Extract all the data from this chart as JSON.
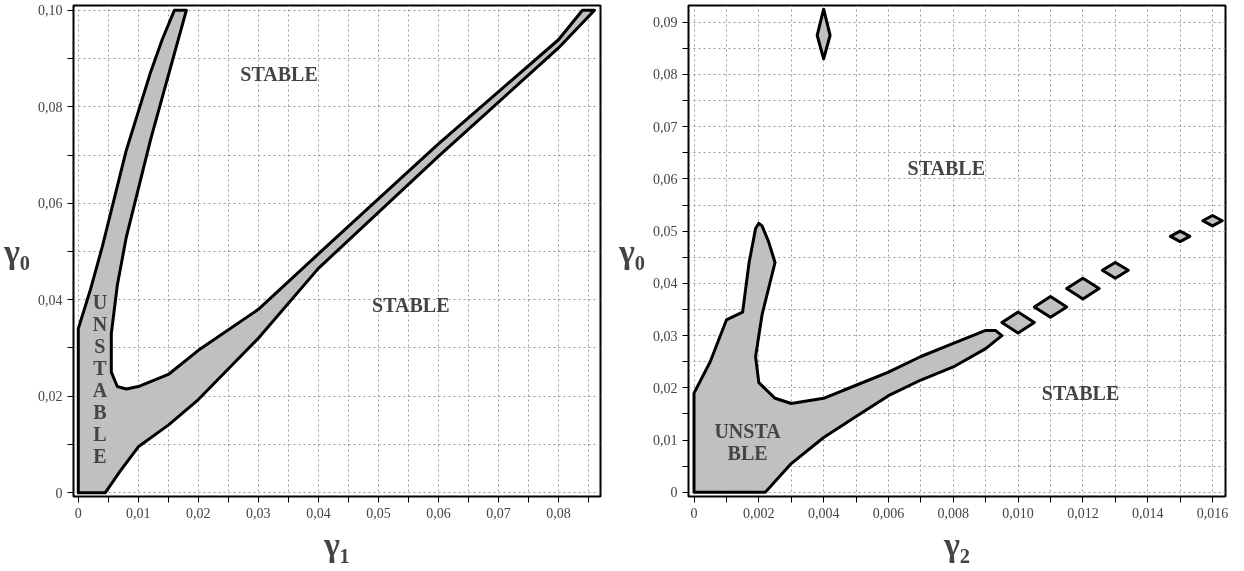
{
  "chart_data": [
    {
      "type": "area",
      "xlabel": "γ₁",
      "ylabel": "γ₀",
      "grid": true,
      "xlim": [
        -0.0008,
        0.087
      ],
      "ylim": [
        -0.0008,
        0.101
      ],
      "xticks": [
        {
          "value": 0,
          "label": "0"
        },
        {
          "value": 0.005,
          "label": null
        },
        {
          "value": 0.01,
          "label": "0,01"
        },
        {
          "value": 0.015,
          "label": null
        },
        {
          "value": 0.02,
          "label": "0,02"
        },
        {
          "value": 0.025,
          "label": null
        },
        {
          "value": 0.03,
          "label": "0,03"
        },
        {
          "value": 0.035,
          "label": null
        },
        {
          "value": 0.04,
          "label": "0,04"
        },
        {
          "value": 0.045,
          "label": null
        },
        {
          "value": 0.05,
          "label": "0,05"
        },
        {
          "value": 0.055,
          "label": null
        },
        {
          "value": 0.06,
          "label": "0,06"
        },
        {
          "value": 0.065,
          "label": null
        },
        {
          "value": 0.07,
          "label": "0,07"
        },
        {
          "value": 0.075,
          "label": null
        },
        {
          "value": 0.08,
          "label": "0,08"
        },
        {
          "value": 0.085,
          "label": null
        }
      ],
      "yticks": [
        {
          "value": 0,
          "label": "0"
        },
        {
          "value": 0.01,
          "label": null
        },
        {
          "value": 0.02,
          "label": "0,02"
        },
        {
          "value": 0.03,
          "label": null
        },
        {
          "value": 0.04,
          "label": "0,04"
        },
        {
          "value": 0.05,
          "label": null
        },
        {
          "value": 0.06,
          "label": "0,06"
        },
        {
          "value": 0.07,
          "label": null
        },
        {
          "value": 0.08,
          "label": "0,08"
        },
        {
          "value": 0.09,
          "label": null
        },
        {
          "value": 0.1,
          "label": "0,10"
        }
      ],
      "series": [
        {
          "color": "#c0c0c0",
          "x": [
            0,
            0,
            0.002,
            0.004,
            0.006,
            0.008,
            0.01,
            0.012,
            0.014,
            0.016,
            0.018,
            0.016,
            0.014,
            0.012,
            0.01,
            0.008,
            0.0065,
            0.0055,
            0.0055,
            0.0065,
            0.008,
            0.01,
            0.015,
            0.02,
            0.03,
            0.04,
            0.06,
            0.08,
            0.084,
            0.086,
            0.08,
            0.06,
            0.04,
            0.03,
            0.02,
            0.015,
            0.01,
            0.007,
            0.0045
          ],
          "values": [
            0,
            0.034,
            0.042,
            0.051,
            0.061,
            0.071,
            0.079,
            0.087,
            0.094,
            0.1,
            0.1,
            0.091,
            0.082,
            0.073,
            0.063,
            0.053,
            0.043,
            0.033,
            0.025,
            0.022,
            0.0215,
            0.022,
            0.0245,
            0.0295,
            0.038,
            0.0495,
            0.0723,
            0.0939,
            0.1,
            0.1,
            0.0922,
            0.0697,
            0.0465,
            0.032,
            0.0193,
            0.014,
            0.0095,
            0.0045,
            0
          ]
        }
      ],
      "annotations": [
        "STABLE",
        "STABLE",
        "U\nN\nS\nT\nA\nB\nL\nE"
      ]
    },
    {
      "type": "area",
      "xlabel": "γ₂",
      "ylabel": "γ₀",
      "grid": true,
      "xlim": [
        -0.00017,
        0.0164
      ],
      "ylim": [
        -0.0008,
        0.0932
      ],
      "xticks": [
        {
          "value": 0,
          "label": "0"
        },
        {
          "value": 0.001,
          "label": null
        },
        {
          "value": 0.002,
          "label": "0,002"
        },
        {
          "value": 0.003,
          "label": null
        },
        {
          "value": 0.004,
          "label": "0,004"
        },
        {
          "value": 0.005,
          "label": null
        },
        {
          "value": 0.006,
          "label": "0,006"
        },
        {
          "value": 0.007,
          "label": null
        },
        {
          "value": 0.008,
          "label": "0,008"
        },
        {
          "value": 0.009,
          "label": null
        },
        {
          "value": 0.01,
          "label": "0,010"
        },
        {
          "value": 0.011,
          "label": null
        },
        {
          "value": 0.012,
          "label": "0,012"
        },
        {
          "value": 0.013,
          "label": null
        },
        {
          "value": 0.014,
          "label": "0,014"
        },
        {
          "value": 0.015,
          "label": null
        },
        {
          "value": 0.016,
          "label": "0,016"
        }
      ],
      "yticks": [
        {
          "value": 0,
          "label": "0"
        },
        {
          "value": 0.005,
          "label": null
        },
        {
          "value": 0.01,
          "label": "0,01"
        },
        {
          "value": 0.015,
          "label": null
        },
        {
          "value": 0.02,
          "label": "0,02"
        },
        {
          "value": 0.025,
          "label": null
        },
        {
          "value": 0.03,
          "label": "0,03"
        },
        {
          "value": 0.035,
          "label": null
        },
        {
          "value": 0.04,
          "label": "0,04"
        },
        {
          "value": 0.045,
          "label": null
        },
        {
          "value": 0.05,
          "label": "0,05"
        },
        {
          "value": 0.055,
          "label": null
        },
        {
          "value": 0.06,
          "label": "0,06"
        },
        {
          "value": 0.065,
          "label": null
        },
        {
          "value": 0.07,
          "label": "0,07"
        },
        {
          "value": 0.075,
          "label": null
        },
        {
          "value": 0.08,
          "label": "0,08"
        },
        {
          "value": 0.085,
          "label": null
        },
        {
          "value": 0.09,
          "label": "0,09"
        }
      ],
      "series": [
        {
          "color": "#c0c0c0",
          "x": [
            0,
            0,
            0.0005,
            0.001,
            0.0015,
            0.0017,
            0.0019,
            0.002,
            0.0021,
            0.0023,
            0.0025,
            0.0021,
            0.0019,
            0.002,
            0.0025,
            0.003,
            0.004,
            0.005,
            0.006,
            0.007,
            0.008,
            0.009,
            0.0093,
            0.0095,
            0.009,
            0.008,
            0.007,
            0.006,
            0.005,
            0.004,
            0.003,
            0.0022
          ],
          "values": [
            0,
            0.019,
            0.025,
            0.033,
            0.0345,
            0.044,
            0.0505,
            0.0515,
            0.051,
            0.048,
            0.044,
            0.034,
            0.026,
            0.021,
            0.018,
            0.017,
            0.018,
            0.0205,
            0.023,
            0.026,
            0.0285,
            0.031,
            0.031,
            0.03,
            0.0275,
            0.024,
            0.0215,
            0.0185,
            0.0145,
            0.0105,
            0.0055,
            0
          ]
        },
        {
          "color": "#c0c0c0",
          "x": [
            0.0038,
            0.004,
            0.0042,
            0.004
          ],
          "values": [
            0.0875,
            0.0925,
            0.0875,
            0.083
          ]
        },
        {
          "color": "#c0c0c0",
          "x": [
            0.0095,
            0.01,
            0.0105,
            0.01
          ],
          "values": [
            0.0325,
            0.0345,
            0.0325,
            0.0305
          ]
        },
        {
          "color": "#c0c0c0",
          "x": [
            0.0105,
            0.011,
            0.0115,
            0.011
          ],
          "values": [
            0.0355,
            0.0375,
            0.0355,
            0.0335
          ]
        },
        {
          "color": "#c0c0c0",
          "x": [
            0.0115,
            0.012,
            0.0125,
            0.012
          ],
          "values": [
            0.039,
            0.041,
            0.039,
            0.037
          ]
        },
        {
          "color": "#c0c0c0",
          "x": [
            0.0126,
            0.013,
            0.0134,
            0.013
          ],
          "values": [
            0.0425,
            0.044,
            0.0425,
            0.041
          ]
        },
        {
          "color": "#c0c0c0",
          "x": [
            0.0147,
            0.015,
            0.0153,
            0.015
          ],
          "values": [
            0.049,
            0.05,
            0.049,
            0.048
          ]
        },
        {
          "color": "#c0c0c0",
          "x": [
            0.0157,
            0.016,
            0.0163,
            0.016
          ],
          "values": [
            0.052,
            0.053,
            0.052,
            0.051
          ]
        }
      ],
      "annotations": [
        "STABLE",
        "STABLE",
        "UNSTA\nBLE"
      ]
    }
  ]
}
